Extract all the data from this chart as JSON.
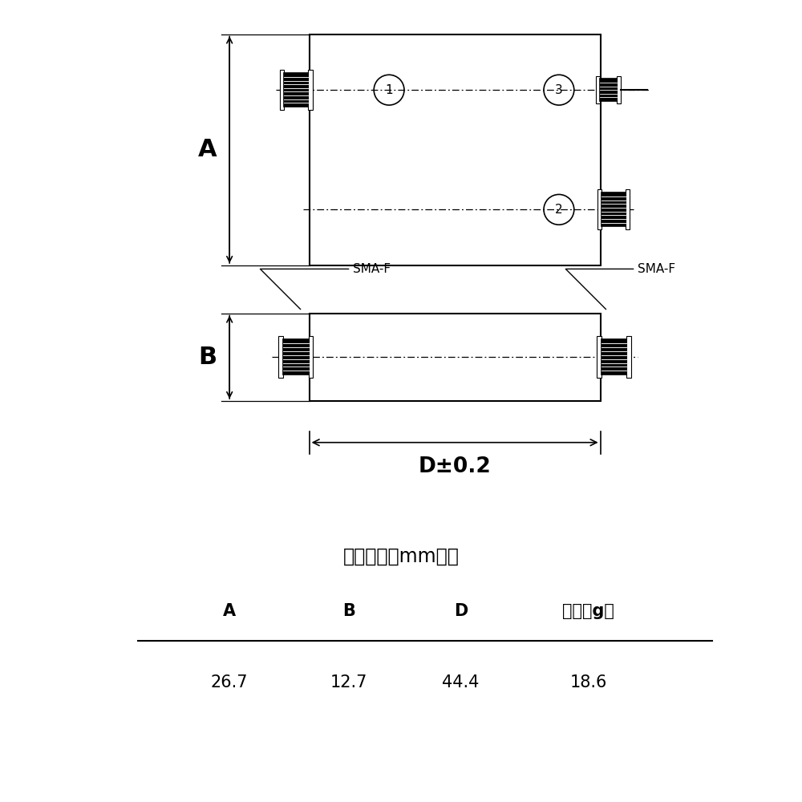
{
  "bg_color": "#ffffff",
  "line_color": "#000000",
  "fig_width": 10,
  "fig_height": 10,
  "title_text": "外观尺寸（mm）：",
  "col_headers": [
    "A",
    "B",
    "D",
    "重量（g）"
  ],
  "col_values": [
    "26.7",
    "12.7",
    "44.4",
    "18.6"
  ],
  "dim_A_label": "A",
  "dim_B_label": "B",
  "dim_D_label": "D±0.2",
  "sma_label": "SMA-F",
  "connector_numbers": [
    "1",
    "2",
    "3"
  ]
}
